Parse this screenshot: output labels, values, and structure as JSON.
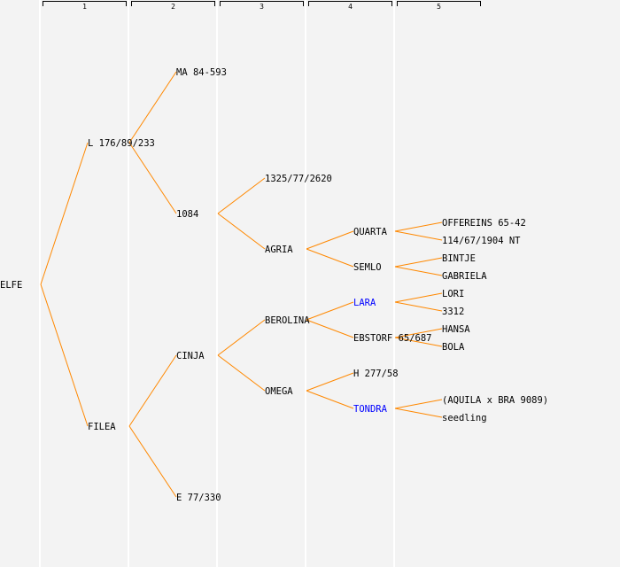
{
  "columns": [
    "1",
    "2",
    "3",
    "4",
    "5"
  ],
  "colors": {
    "line": "#ff8800",
    "text": "#000000",
    "highlight": "#0000ff",
    "background": "#f3f3f3"
  },
  "tree": {
    "name": "ELFE",
    "children": [
      {
        "name": "L 176/89/233",
        "children": [
          {
            "name": "MA 84-593"
          },
          {
            "name": "1084",
            "children": [
              {
                "name": "1325/77/2620"
              },
              {
                "name": "AGRIA",
                "children": [
                  {
                    "name": "QUARTA",
                    "children": [
                      {
                        "name": "OFFEREINS 65-42"
                      },
                      {
                        "name": "114/67/1904 NT"
                      }
                    ]
                  },
                  {
                    "name": "SEMLO",
                    "children": [
                      {
                        "name": "BINTJE"
                      },
                      {
                        "name": "GABRIELA"
                      }
                    ]
                  }
                ]
              }
            ]
          }
        ]
      },
      {
        "name": "FILEA",
        "children": [
          {
            "name": "CINJA",
            "children": [
              {
                "name": "BEROLINA",
                "children": [
                  {
                    "name": "LARA",
                    "highlight": true,
                    "children": [
                      {
                        "name": "LORI"
                      },
                      {
                        "name": "3312"
                      }
                    ]
                  },
                  {
                    "name": "EBSTORF 65/687",
                    "children": [
                      {
                        "name": "HANSA"
                      },
                      {
                        "name": "BOLA"
                      }
                    ]
                  }
                ]
              },
              {
                "name": "OMEGA",
                "children": [
                  {
                    "name": "H 277/58"
                  },
                  {
                    "name": "TONDRA",
                    "highlight": true,
                    "children": [
                      {
                        "name": "(AQUILA x BRA 9089)"
                      },
                      {
                        "name": "seedling"
                      }
                    ]
                  }
                ]
              }
            ]
          },
          {
            "name": "E 77/330"
          }
        ]
      }
    ]
  }
}
